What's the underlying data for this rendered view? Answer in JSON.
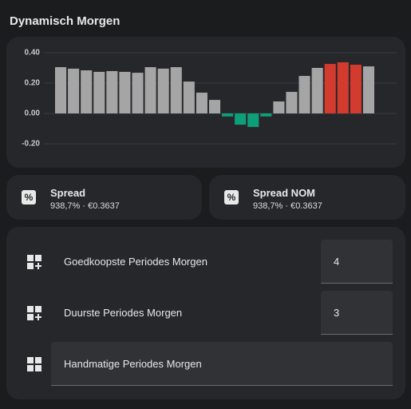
{
  "header": {
    "title": "Dynamisch Morgen"
  },
  "chart_data": {
    "type": "bar",
    "values": [
      0.305,
      0.295,
      0.284,
      0.274,
      0.279,
      0.274,
      0.268,
      0.305,
      0.295,
      0.305,
      0.21,
      0.137,
      0.089,
      -0.02,
      -0.074,
      -0.089,
      -0.02,
      0.079,
      0.142,
      0.247,
      0.3,
      0.326,
      0.337,
      0.321,
      0.31
    ],
    "colors": [
      "#a5a5a5",
      "#a5a5a5",
      "#a5a5a5",
      "#a5a5a5",
      "#a5a5a5",
      "#a5a5a5",
      "#a5a5a5",
      "#a5a5a5",
      "#a5a5a5",
      "#a5a5a5",
      "#a5a5a5",
      "#a5a5a5",
      "#a5a5a5",
      "#0f9e7a",
      "#0f9e7a",
      "#0f9e7a",
      "#0f9e7a",
      "#a5a5a5",
      "#a5a5a5",
      "#a5a5a5",
      "#a5a5a5",
      "#d23b2e",
      "#d23b2e",
      "#d23b2e",
      "#a5a5a5"
    ],
    "ylim": [
      -0.3,
      0.44
    ],
    "yticks": [
      {
        "value": 0.4,
        "label": "0.40"
      },
      {
        "value": 0.2,
        "label": "0.20"
      },
      {
        "value": 0,
        "label": "0.00"
      },
      {
        "value": -0.2,
        "label": "-0.20"
      }
    ],
    "grid": true
  },
  "cards": [
    {
      "title": "Spread",
      "state": "938,7% · €0.3637"
    },
    {
      "title": "Spread NOM",
      "state": "938,7% · €0.3637"
    }
  ],
  "entities": [
    {
      "name": "Goedkoopste Periodes Morgen",
      "value": "4"
    },
    {
      "name": "Duurste Periodes Morgen",
      "value": "3"
    },
    {
      "name": "Handmatige Periodes Morgen"
    }
  ]
}
